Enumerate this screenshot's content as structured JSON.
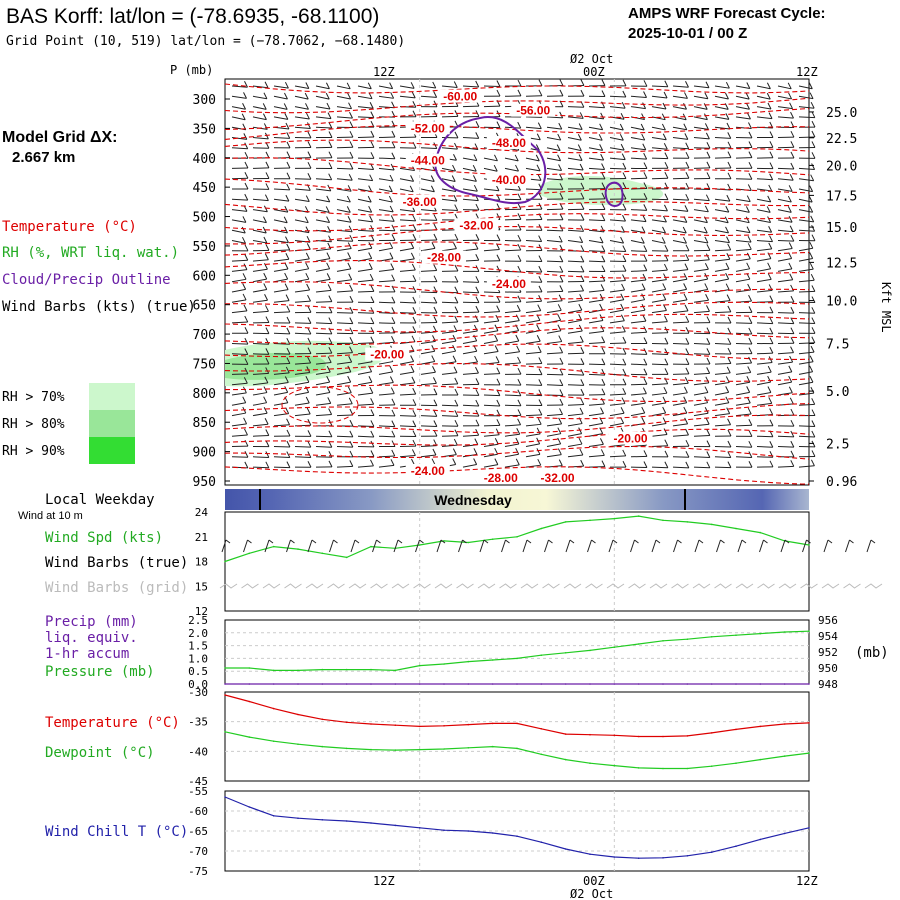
{
  "header": {
    "title": "BAS Korff:  lat/lon = (-78.6935, -68.1100)",
    "subtitle": "Grid Point (10, 519) lat/lon = (−78.7062, −68.1480)",
    "cycle_title": "AMPS WRF Forecast Cycle:",
    "cycle_value": "2025-10-01 / 00  Z"
  },
  "model_grid": {
    "label": "Model Grid ΔX:",
    "value": "2.667 km"
  },
  "time_axis": {
    "ticks": [
      "12Z",
      "00Z",
      "12Z"
    ],
    "date_label": "Ø2 Oct"
  },
  "legend": {
    "temperature": "Temperature (°C)",
    "rh": "RH (%, WRT liq. wat.)",
    "cloud": "Cloud/Precip Outline",
    "barbs": "Wind Barbs (kts) (true)",
    "rh70": "RH > 70%",
    "rh80": "RH > 80%",
    "rh90": "RH > 90%"
  },
  "colors": {
    "temperature": "#dd0000",
    "rh70": "#ccf7cc",
    "rh80": "#99e699",
    "rh90": "#33dd33",
    "cloud": "#6a1fa6",
    "wind_chill": "#2222aa",
    "green": "#22cc22"
  },
  "weekday": {
    "label": "Local Weekday",
    "value": "Wednesday"
  },
  "surface_panel": {
    "wind_at": "Wind at 10 m",
    "spd_label": "Wind Spd (kts)",
    "barbs_true": "Wind Barbs (true)",
    "barbs_grid": "Wind Barbs (grid)"
  },
  "precip_panel": {
    "precip_label": "Precip (mm)",
    "liq": "liq. equiv.",
    "accum": "1-hr accum",
    "pressure_label": "Pressure (mb)",
    "mb_unit": "(mb)"
  },
  "temp_panel": {
    "temp_label": "Temperature (°C)",
    "dew_label": "Dewpoint (°C)"
  },
  "chill_panel": {
    "label": "Wind Chill T (°C)"
  },
  "chart_data": {
    "type": "line",
    "title": "AMPS WRF Forecast Cycle: 2025-10-01 / 00 Z",
    "x_hours": [
      0,
      1.5,
      3,
      4.5,
      6,
      7.5,
      9,
      10.5,
      12,
      13.5,
      15,
      16.5,
      18,
      19.5,
      21,
      22.5,
      24,
      25.5,
      27,
      28.5,
      30,
      31.5,
      33,
      34.5,
      36
    ],
    "x_ticks": [
      {
        "label": "12Z",
        "hour": 12
      },
      {
        "label": "00Z",
        "hour": 24
      },
      {
        "label": "12Z",
        "hour": 36
      }
    ],
    "pressure_levels": [
      {
        "p": 300,
        "label": "300"
      },
      {
        "p": 350,
        "label": "350"
      },
      {
        "p": 400,
        "label": "400"
      },
      {
        "p": 450,
        "label": "450"
      },
      {
        "p": 500,
        "label": "500"
      },
      {
        "p": 550,
        "label": "550"
      },
      {
        "p": 600,
        "label": "600"
      },
      {
        "p": 650,
        "label": "650"
      },
      {
        "p": 700,
        "label": "700"
      },
      {
        "p": 750,
        "label": "750"
      },
      {
        "p": 800,
        "label": "800"
      },
      {
        "p": 850,
        "label": "850"
      },
      {
        "p": 900,
        "label": "900"
      },
      {
        "p": 950,
        "label": "950"
      }
    ],
    "pressure_unit": "P (mb)",
    "height_ticks": [
      {
        "p": 322,
        "label": "25.0"
      },
      {
        "p": 366,
        "label": "22.5"
      },
      {
        "p": 413,
        "label": "20.0"
      },
      {
        "p": 464,
        "label": "17.5"
      },
      {
        "p": 518,
        "label": "15.0"
      },
      {
        "p": 578,
        "label": "12.5"
      },
      {
        "p": 643,
        "label": "10.0"
      },
      {
        "p": 716,
        "label": "7.5"
      },
      {
        "p": 797,
        "label": "5.0"
      },
      {
        "p": 886,
        "label": "2.5"
      },
      {
        "p": 950,
        "label": "0.96"
      }
    ],
    "height_unit": "Kft MSL",
    "temperature_contours": [
      {
        "label": "-60.00",
        "hour": 14.5,
        "p": 301
      },
      {
        "label": "-56.00",
        "hour": 19,
        "p": 325
      },
      {
        "label": "-52.00",
        "hour": 12.5,
        "p": 355
      },
      {
        "label": "-48.00",
        "hour": 17.5,
        "p": 380
      },
      {
        "label": "-44.00",
        "hour": 12.5,
        "p": 410
      },
      {
        "label": "-40.00",
        "hour": 17.5,
        "p": 443
      },
      {
        "label": "-36.00",
        "hour": 12,
        "p": 480
      },
      {
        "label": "-32.00",
        "hour": 15.5,
        "p": 520
      },
      {
        "label": "-28.00",
        "hour": 13.5,
        "p": 575
      },
      {
        "label": "-24.00",
        "hour": 17.5,
        "p": 620
      },
      {
        "label": "-20.00",
        "hour": 10,
        "p": 740
      },
      {
        "label": "-20.00",
        "hour": 25,
        "p": 883
      },
      {
        "label": "-24.00",
        "hour": 12.5,
        "p": 938
      },
      {
        "label": "-28.00",
        "hour": 17,
        "p": 950
      },
      {
        "label": "-32.00",
        "hour": 20.5,
        "p": 950
      }
    ],
    "surface_wind_speed_kts": {
      "ylim": [
        12,
        24
      ],
      "ticks": [
        12,
        15,
        18,
        21,
        24
      ],
      "values": [
        18,
        19,
        19.8,
        19.5,
        19,
        18.5,
        19.8,
        19.6,
        20,
        20.5,
        20.3,
        20.7,
        21,
        22,
        22.8,
        23,
        23.2,
        23.5,
        23,
        22.8,
        22.5,
        22,
        21.5,
        20.5,
        20
      ]
    },
    "precip_mm": {
      "ylim": [
        0,
        2.5
      ],
      "ticks": [
        0.0,
        0.5,
        1.0,
        1.5,
        2.0,
        2.5
      ],
      "values": [
        0,
        0,
        0,
        0,
        0,
        0,
        0,
        0,
        0,
        0,
        0,
        0,
        0,
        0,
        0,
        0,
        0,
        0,
        0,
        0,
        0,
        0,
        0,
        0,
        0
      ]
    },
    "pressure_mb": {
      "ylim": [
        948,
        956
      ],
      "ticks": [
        948,
        950,
        952,
        954,
        956
      ],
      "values": [
        950,
        950,
        949.7,
        949.7,
        949.8,
        949.8,
        949.8,
        949.7,
        950.3,
        950.5,
        950.8,
        951,
        951.2,
        951.6,
        951.9,
        952.2,
        952.6,
        953,
        953.4,
        953.6,
        953.9,
        954.1,
        954.3,
        954.5,
        954.6
      ]
    },
    "temperature_c": {
      "ylim": [
        -45,
        -30
      ],
      "ticks": [
        -45,
        -40,
        -35,
        -30
      ],
      "values": [
        -30.5,
        -31.6,
        -32.8,
        -33.8,
        -34.6,
        -35.1,
        -35.4,
        -35.6,
        -35.8,
        -35.7,
        -35.5,
        -35.3,
        -35.3,
        -36.2,
        -37.1,
        -37.2,
        -37.3,
        -37.5,
        -37.5,
        -37.4,
        -36.9,
        -36.3,
        -35.8,
        -35.4,
        -35.2
      ]
    },
    "dewpoint_c": {
      "ylim": [
        -45,
        -30
      ],
      "ticks": [
        -45,
        -40,
        -35,
        -30
      ],
      "values": [
        -36.7,
        -37.6,
        -38.3,
        -38.8,
        -39.2,
        -39.5,
        -39.7,
        -39.8,
        -39.7,
        -39.6,
        -39.4,
        -39.2,
        -39.5,
        -40.5,
        -41.4,
        -42,
        -42.4,
        -42.8,
        -42.9,
        -42.9,
        -42.5,
        -42,
        -41.4,
        -40.8,
        -40.3
      ]
    },
    "wind_chill_c": {
      "ylim": [
        -75,
        -55
      ],
      "ticks": [
        -75,
        -70,
        -65,
        -60,
        -55
      ],
      "values": [
        -56.5,
        -59,
        -61.2,
        -61.8,
        -62.2,
        -62.5,
        -63,
        -63.6,
        -64.2,
        -64.8,
        -65,
        -65.5,
        -66.3,
        -67.8,
        -69.5,
        -70.8,
        -71.5,
        -71.8,
        -71.7,
        -71.2,
        -70.3,
        -68.8,
        -67.1,
        -65.6,
        -64.2
      ]
    }
  }
}
